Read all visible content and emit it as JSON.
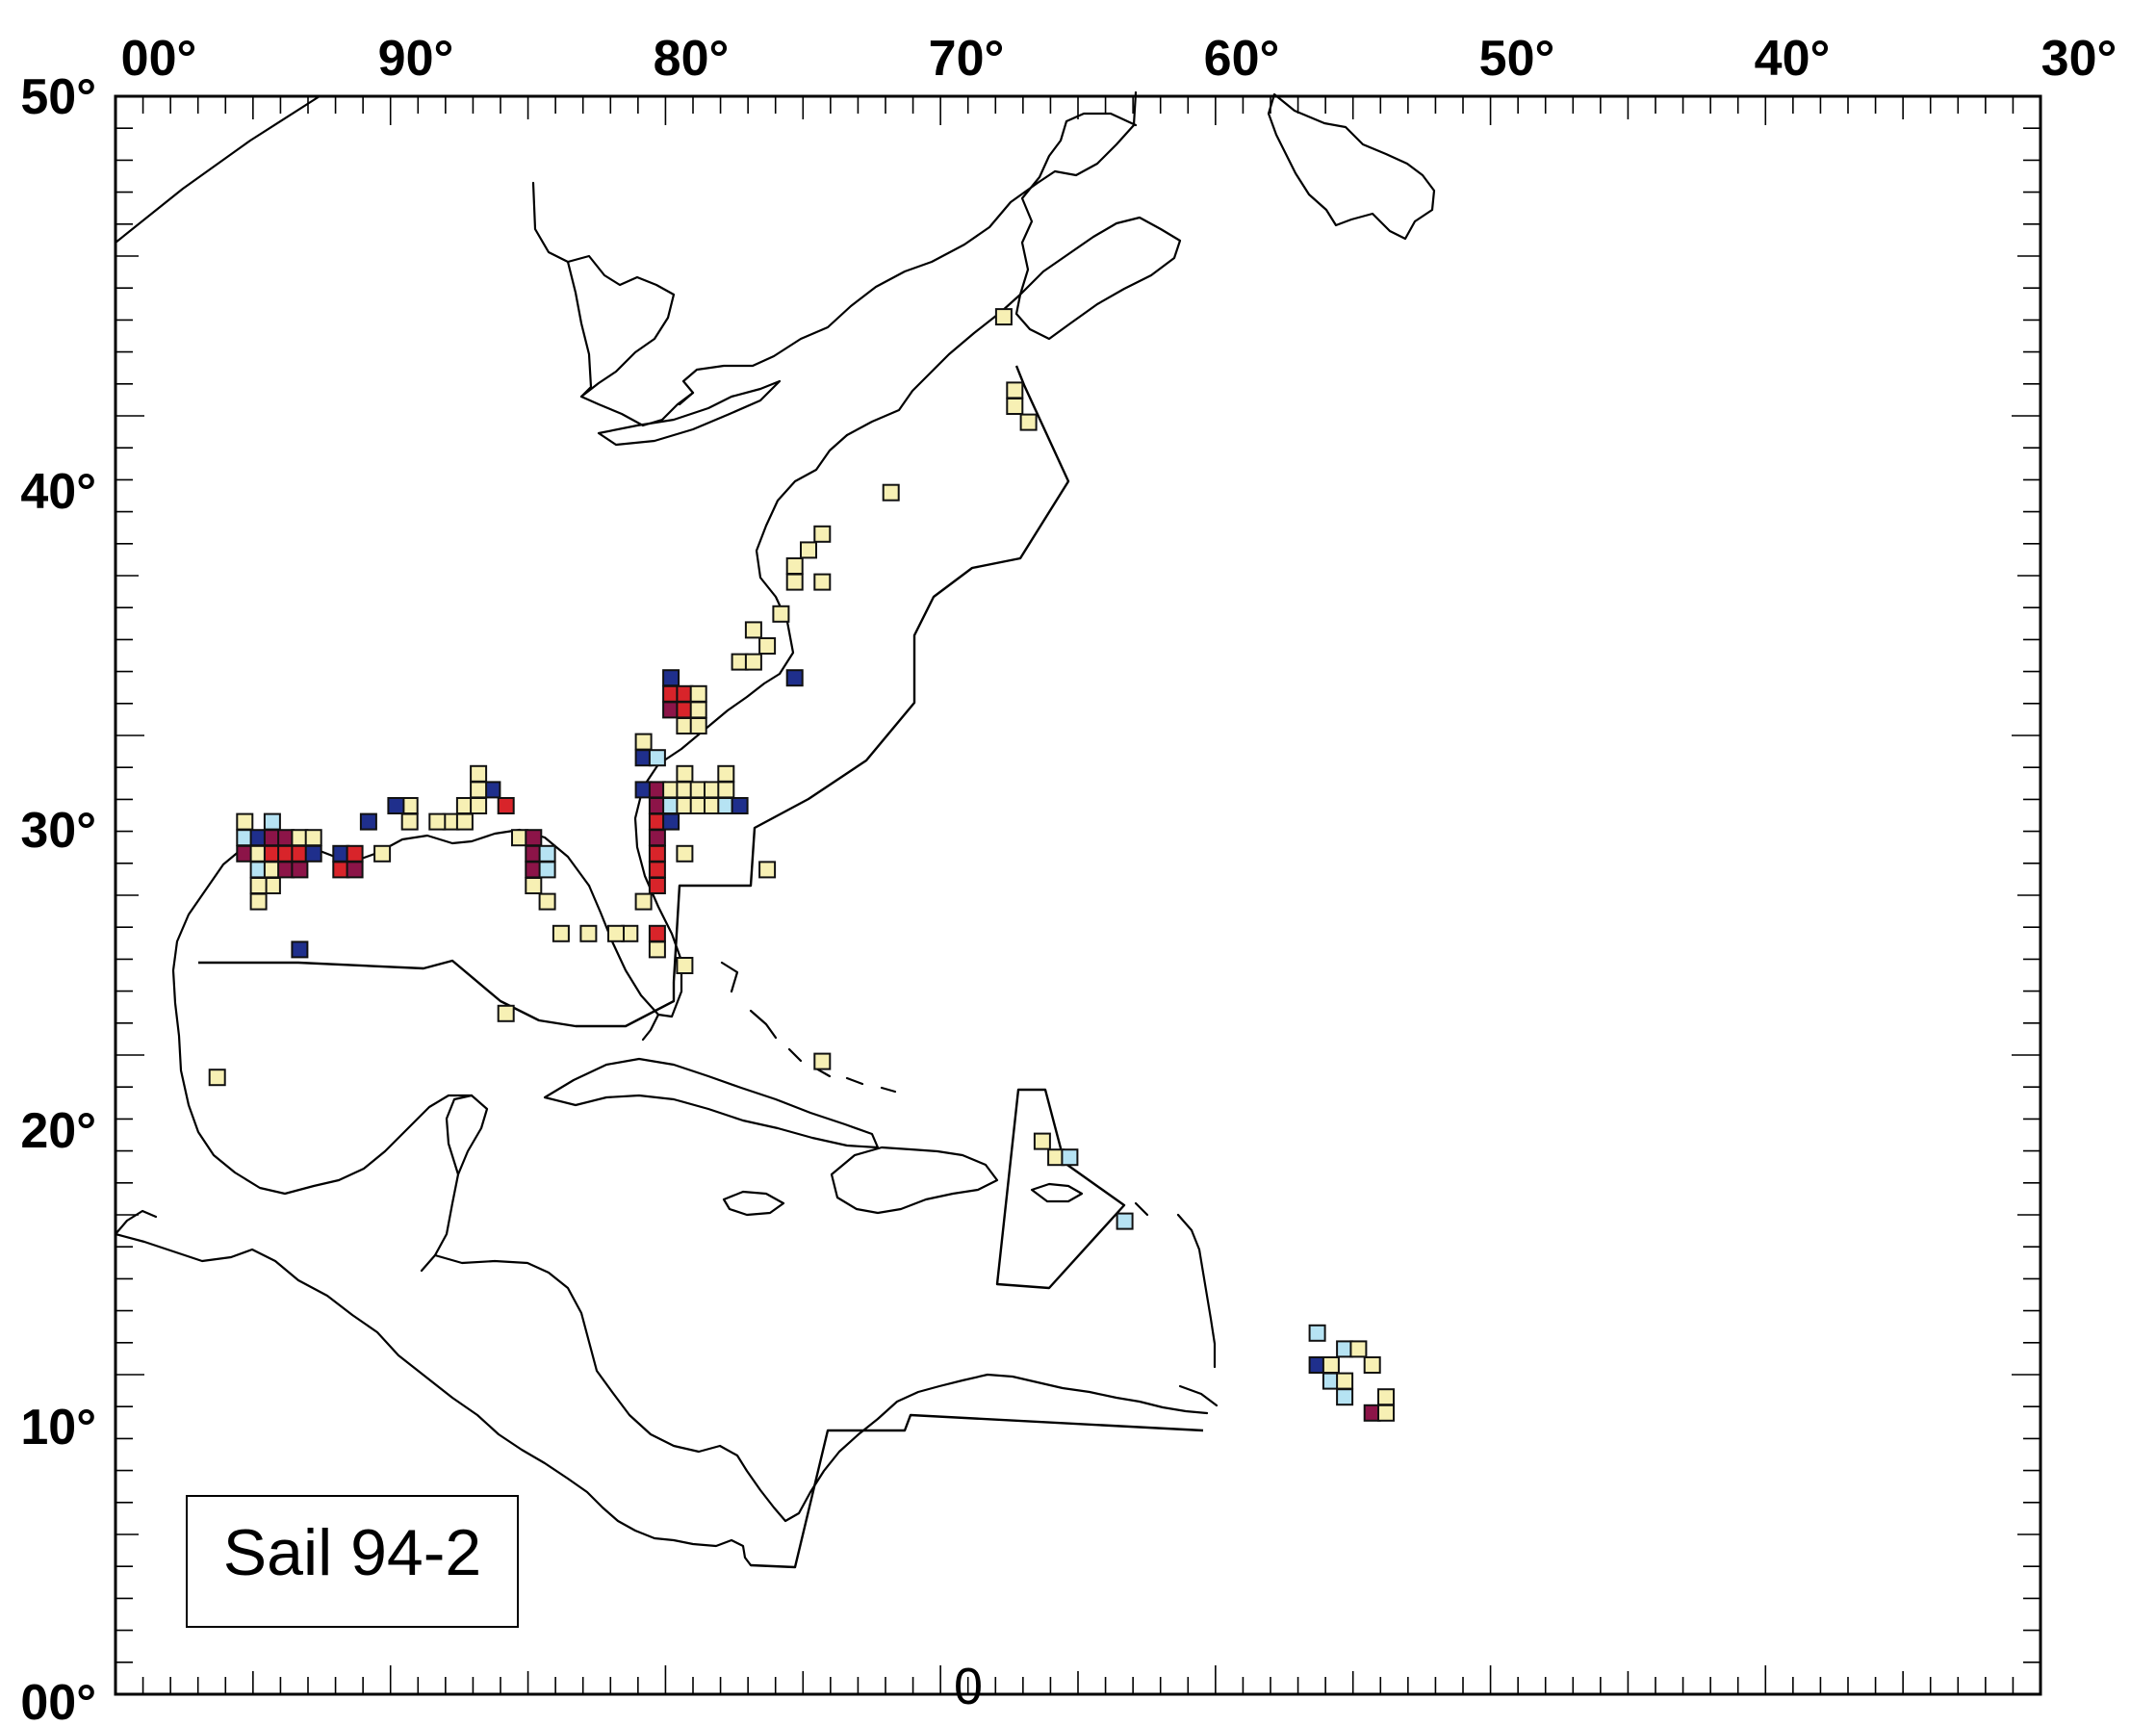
{
  "map": {
    "label": "Sail 94-2",
    "bottom_marker": "0",
    "lon_labels": [
      "00°",
      "90°",
      "80°",
      "70°",
      "60°",
      "50°",
      "40°",
      "30°"
    ],
    "lat_labels": [
      "50°",
      "40°",
      "30°",
      "20°",
      "10°",
      "00°"
    ],
    "extent": {
      "lon_min": -100,
      "lon_max": -30,
      "lat_min": 0,
      "lat_max": 50
    },
    "colors": {
      "yellow": "#f7f0b4",
      "light_blue": "#b6e3f3",
      "dark_blue": "#1f2f8c",
      "red": "#d8242a",
      "maroon": "#8c1448",
      "coast": "#000000",
      "background": "#ffffff"
    },
    "cells": [
      {
        "lon": -67.7,
        "lat": 43.1,
        "c": "yellow"
      },
      {
        "lon": -67.3,
        "lat": 40.8,
        "c": "yellow"
      },
      {
        "lon": -67.3,
        "lat": 40.3,
        "c": "yellow"
      },
      {
        "lon": -66.8,
        "lat": 39.8,
        "c": "yellow"
      },
      {
        "lon": -71.8,
        "lat": 37.6,
        "c": "yellow"
      },
      {
        "lon": -74.3,
        "lat": 36.3,
        "c": "yellow"
      },
      {
        "lon": -74.8,
        "lat": 35.8,
        "c": "yellow"
      },
      {
        "lon": -75.3,
        "lat": 35.3,
        "c": "yellow"
      },
      {
        "lon": -75.3,
        "lat": 34.8,
        "c": "yellow"
      },
      {
        "lon": -74.3,
        "lat": 34.8,
        "c": "yellow"
      },
      {
        "lon": -75.8,
        "lat": 33.8,
        "c": "yellow"
      },
      {
        "lon": -76.8,
        "lat": 33.3,
        "c": "yellow"
      },
      {
        "lon": -76.3,
        "lat": 32.8,
        "c": "yellow"
      },
      {
        "lon": -77.3,
        "lat": 32.3,
        "c": "yellow"
      },
      {
        "lon": -76.8,
        "lat": 32.3,
        "c": "yellow"
      },
      {
        "lon": -75.3,
        "lat": 31.8,
        "c": "dark_blue"
      },
      {
        "lon": -79.8,
        "lat": 31.8,
        "c": "dark_blue"
      },
      {
        "lon": -79.8,
        "lat": 31.3,
        "c": "red"
      },
      {
        "lon": -79.3,
        "lat": 31.3,
        "c": "red"
      },
      {
        "lon": -78.8,
        "lat": 31.3,
        "c": "yellow"
      },
      {
        "lon": -79.8,
        "lat": 30.8,
        "c": "maroon"
      },
      {
        "lon": -79.3,
        "lat": 30.8,
        "c": "red"
      },
      {
        "lon": -78.8,
        "lat": 30.8,
        "c": "yellow"
      },
      {
        "lon": -79.3,
        "lat": 30.3,
        "c": "yellow"
      },
      {
        "lon": -78.8,
        "lat": 30.3,
        "c": "yellow"
      },
      {
        "lon": -80.8,
        "lat": 29.8,
        "c": "yellow"
      },
      {
        "lon": -80.8,
        "lat": 29.3,
        "c": "dark_blue"
      },
      {
        "lon": -80.3,
        "lat": 29.3,
        "c": "light_blue"
      },
      {
        "lon": -79.3,
        "lat": 28.8,
        "c": "yellow"
      },
      {
        "lon": -77.8,
        "lat": 28.8,
        "c": "yellow"
      },
      {
        "lon": -80.8,
        "lat": 28.3,
        "c": "dark_blue"
      },
      {
        "lon": -80.3,
        "lat": 28.3,
        "c": "maroon"
      },
      {
        "lon": -79.8,
        "lat": 28.3,
        "c": "yellow"
      },
      {
        "lon": -79.3,
        "lat": 28.3,
        "c": "yellow"
      },
      {
        "lon": -78.8,
        "lat": 28.3,
        "c": "yellow"
      },
      {
        "lon": -78.3,
        "lat": 28.3,
        "c": "yellow"
      },
      {
        "lon": -77.8,
        "lat": 28.3,
        "c": "yellow"
      },
      {
        "lon": -80.3,
        "lat": 27.8,
        "c": "maroon"
      },
      {
        "lon": -79.8,
        "lat": 27.8,
        "c": "light_blue"
      },
      {
        "lon": -79.3,
        "lat": 27.8,
        "c": "yellow"
      },
      {
        "lon": -78.8,
        "lat": 27.8,
        "c": "yellow"
      },
      {
        "lon": -78.3,
        "lat": 27.8,
        "c": "yellow"
      },
      {
        "lon": -77.8,
        "lat": 27.8,
        "c": "light_blue"
      },
      {
        "lon": -77.3,
        "lat": 27.8,
        "c": "dark_blue"
      },
      {
        "lon": -80.3,
        "lat": 27.3,
        "c": "red"
      },
      {
        "lon": -79.8,
        "lat": 27.3,
        "c": "dark_blue"
      },
      {
        "lon": -80.3,
        "lat": 26.8,
        "c": "maroon"
      },
      {
        "lon": -80.3,
        "lat": 26.3,
        "c": "red"
      },
      {
        "lon": -79.3,
        "lat": 26.3,
        "c": "yellow"
      },
      {
        "lon": -80.3,
        "lat": 25.8,
        "c": "red"
      },
      {
        "lon": -80.3,
        "lat": 25.3,
        "c": "red"
      },
      {
        "lon": -80.8,
        "lat": 24.8,
        "c": "yellow"
      },
      {
        "lon": -76.3,
        "lat": 25.8,
        "c": "yellow"
      },
      {
        "lon": -80.3,
        "lat": 23.8,
        "c": "red"
      },
      {
        "lon": -80.3,
        "lat": 23.3,
        "c": "yellow"
      },
      {
        "lon": -79.3,
        "lat": 22.8,
        "c": "yellow"
      },
      {
        "lon": -81.3,
        "lat": 23.8,
        "c": "yellow"
      },
      {
        "lon": -81.8,
        "lat": 23.8,
        "c": "yellow"
      },
      {
        "lon": -82.8,
        "lat": 23.8,
        "c": "yellow"
      },
      {
        "lon": -83.8,
        "lat": 23.8,
        "c": "yellow"
      },
      {
        "lon": -86.8,
        "lat": 28.8,
        "c": "yellow"
      },
      {
        "lon": -86.3,
        "lat": 28.3,
        "c": "dark_blue"
      },
      {
        "lon": -86.8,
        "lat": 28.3,
        "c": "yellow"
      },
      {
        "lon": -87.3,
        "lat": 27.8,
        "c": "yellow"
      },
      {
        "lon": -86.8,
        "lat": 27.8,
        "c": "yellow"
      },
      {
        "lon": -85.8,
        "lat": 27.8,
        "c": "red"
      },
      {
        "lon": -87.8,
        "lat": 27.3,
        "c": "yellow"
      },
      {
        "lon": -87.3,
        "lat": 27.3,
        "c": "yellow"
      },
      {
        "lon": -88.3,
        "lat": 27.3,
        "c": "yellow"
      },
      {
        "lon": -89.3,
        "lat": 27.8,
        "c": "yellow"
      },
      {
        "lon": -89.8,
        "lat": 27.8,
        "c": "dark_blue"
      },
      {
        "lon": -89.3,
        "lat": 27.3,
        "c": "yellow"
      },
      {
        "lon": -90.8,
        "lat": 27.3,
        "c": "dark_blue"
      },
      {
        "lon": -85.3,
        "lat": 26.8,
        "c": "yellow"
      },
      {
        "lon": -84.8,
        "lat": 26.8,
        "c": "maroon"
      },
      {
        "lon": -84.8,
        "lat": 26.3,
        "c": "maroon"
      },
      {
        "lon": -84.3,
        "lat": 26.3,
        "c": "light_blue"
      },
      {
        "lon": -84.8,
        "lat": 25.8,
        "c": "maroon"
      },
      {
        "lon": -84.3,
        "lat": 25.8,
        "c": "light_blue"
      },
      {
        "lon": -84.8,
        "lat": 25.3,
        "c": "yellow"
      },
      {
        "lon": -84.3,
        "lat": 24.8,
        "c": "yellow"
      },
      {
        "lon": -90.3,
        "lat": 26.3,
        "c": "yellow"
      },
      {
        "lon": -95.3,
        "lat": 27.3,
        "c": "yellow"
      },
      {
        "lon": -94.3,
        "lat": 27.3,
        "c": "light_blue"
      },
      {
        "lon": -95.3,
        "lat": 26.8,
        "c": "light_blue"
      },
      {
        "lon": -94.8,
        "lat": 26.8,
        "c": "dark_blue"
      },
      {
        "lon": -94.3,
        "lat": 26.8,
        "c": "maroon"
      },
      {
        "lon": -93.8,
        "lat": 26.8,
        "c": "maroon"
      },
      {
        "lon": -93.3,
        "lat": 26.8,
        "c": "yellow"
      },
      {
        "lon": -92.8,
        "lat": 26.8,
        "c": "yellow"
      },
      {
        "lon": -95.3,
        "lat": 26.3,
        "c": "maroon"
      },
      {
        "lon": -94.8,
        "lat": 26.3,
        "c": "yellow"
      },
      {
        "lon": -94.3,
        "lat": 26.3,
        "c": "red"
      },
      {
        "lon": -93.8,
        "lat": 26.3,
        "c": "red"
      },
      {
        "lon": -93.3,
        "lat": 26.3,
        "c": "red"
      },
      {
        "lon": -92.8,
        "lat": 26.3,
        "c": "dark_blue"
      },
      {
        "lon": -91.8,
        "lat": 26.3,
        "c": "dark_blue"
      },
      {
        "lon": -91.3,
        "lat": 26.3,
        "c": "red"
      },
      {
        "lon": -94.8,
        "lat": 25.8,
        "c": "light_blue"
      },
      {
        "lon": -94.3,
        "lat": 25.8,
        "c": "yellow"
      },
      {
        "lon": -93.8,
        "lat": 25.8,
        "c": "maroon"
      },
      {
        "lon": -93.3,
        "lat": 25.8,
        "c": "maroon"
      },
      {
        "lon": -91.8,
        "lat": 25.8,
        "c": "red"
      },
      {
        "lon": -91.3,
        "lat": 25.8,
        "c": "maroon"
      },
      {
        "lon": -94.3,
        "lat": 25.3,
        "c": "yellow"
      },
      {
        "lon": -94.8,
        "lat": 25.3,
        "c": "yellow"
      },
      {
        "lon": -94.8,
        "lat": 24.8,
        "c": "yellow"
      },
      {
        "lon": -93.3,
        "lat": 23.3,
        "c": "dark_blue"
      },
      {
        "lon": -85.8,
        "lat": 21.3,
        "c": "yellow"
      },
      {
        "lon": -96.3,
        "lat": 19.3,
        "c": "yellow"
      },
      {
        "lon": -74.3,
        "lat": 19.8,
        "c": "yellow"
      },
      {
        "lon": -66.3,
        "lat": 17.3,
        "c": "yellow"
      },
      {
        "lon": -65.8,
        "lat": 16.8,
        "c": "yellow"
      },
      {
        "lon": -65.3,
        "lat": 16.8,
        "c": "light_blue"
      },
      {
        "lon": -63.3,
        "lat": 14.8,
        "c": "light_blue"
      },
      {
        "lon": -56.3,
        "lat": 11.3,
        "c": "light_blue"
      },
      {
        "lon": -55.3,
        "lat": 10.8,
        "c": "light_blue"
      },
      {
        "lon": -54.8,
        "lat": 10.8,
        "c": "yellow"
      },
      {
        "lon": -56.3,
        "lat": 10.3,
        "c": "dark_blue"
      },
      {
        "lon": -55.8,
        "lat": 10.3,
        "c": "yellow"
      },
      {
        "lon": -54.3,
        "lat": 10.3,
        "c": "yellow"
      },
      {
        "lon": -55.8,
        "lat": 9.8,
        "c": "light_blue"
      },
      {
        "lon": -55.3,
        "lat": 9.8,
        "c": "yellow"
      },
      {
        "lon": -55.3,
        "lat": 9.3,
        "c": "light_blue"
      },
      {
        "lon": -53.8,
        "lat": 9.3,
        "c": "yellow"
      },
      {
        "lon": -54.3,
        "lat": 8.8,
        "c": "maroon"
      },
      {
        "lon": -53.8,
        "lat": 8.8,
        "c": "yellow"
      }
    ]
  }
}
